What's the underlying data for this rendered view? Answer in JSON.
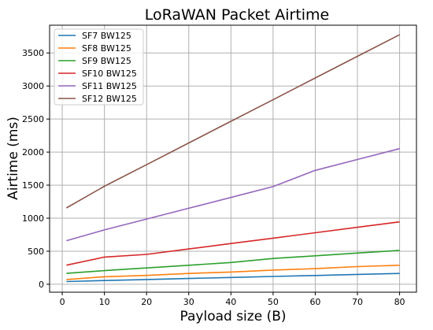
{
  "chart_data": {
    "type": "line",
    "title": "LoRaWAN Packet Airtime",
    "xlabel": "Payload size (B)",
    "ylabel": "Airtime (ms)",
    "xlim": [
      -3,
      84
    ],
    "ylim": [
      -120,
      3920
    ],
    "xticks": [
      0,
      10,
      20,
      30,
      40,
      50,
      60,
      70,
      80
    ],
    "yticks": [
      0,
      500,
      1000,
      1500,
      2000,
      2500,
      3000,
      3500
    ],
    "grid": true,
    "legend_position": "top-left",
    "x": [
      1,
      10,
      20,
      30,
      40,
      50,
      60,
      70,
      80
    ],
    "series": [
      {
        "name": "SF7 BW125",
        "color": "#1f77b4",
        "values": [
          41,
          56,
          72,
          87,
          103,
          118,
          133,
          149,
          164
        ]
      },
      {
        "name": "SF8 BW125",
        "color": "#ff7f0e",
        "values": [
          72,
          113,
          134,
          164,
          185,
          215,
          236,
          267,
          288
        ]
      },
      {
        "name": "SF9 BW125",
        "color": "#2ca02c",
        "values": [
          165,
          206,
          247,
          288,
          329,
          390,
          431,
          472,
          513
        ]
      },
      {
        "name": "SF10 BW125",
        "color": "#d62728",
        "values": [
          289,
          411,
          452,
          534,
          616,
          698,
          780,
          862,
          944
        ]
      },
      {
        "name": "SF11 BW125",
        "color": "#9467bd",
        "values": [
          659,
          823,
          987,
          1150,
          1314,
          1478,
          1724,
          1888,
          2052
        ]
      },
      {
        "name": "SF12 BW125",
        "color": "#8c564b",
        "values": [
          1155,
          1483,
          1810,
          2138,
          2466,
          2793,
          3121,
          3449,
          3776
        ]
      }
    ]
  }
}
